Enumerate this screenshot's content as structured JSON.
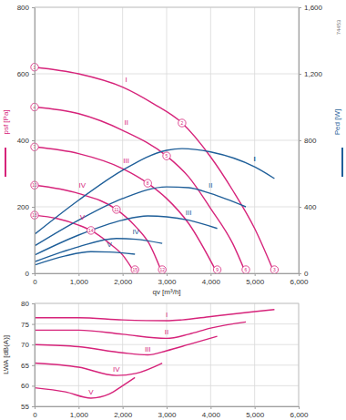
{
  "chart_data": [
    {
      "type": "line",
      "x_label": "qv [m³/h]",
      "y_label": "psf [Pa]",
      "y2_label": "Ped [W]",
      "annotations": [
        "74453"
      ],
      "grid": true,
      "xlim": [
        0,
        6000
      ],
      "xticks": [
        0,
        {
          "value": 1000,
          "label": "1,000"
        },
        {
          "value": 2000,
          "label": "2,000"
        },
        {
          "value": 3000,
          "label": "3,000"
        },
        {
          "value": 4000,
          "label": "4,000"
        },
        {
          "value": 5000,
          "label": "5,000"
        },
        {
          "value": 6000,
          "label": "6,000"
        }
      ],
      "ylim": [
        0,
        800
      ],
      "yticks": [
        0,
        200,
        400,
        600,
        800
      ],
      "y2lim": [
        0,
        1600
      ],
      "y2ticks": [
        0,
        400,
        800,
        {
          "value": 1200,
          "label": "1,200"
        },
        {
          "value": 1600,
          "label": "1,600"
        }
      ],
      "series": [
        {
          "name": "I",
          "color": "#d6237a",
          "x": [
            0,
            1000,
            2000,
            2700,
            3350,
            4000,
            4500,
            5000,
            5450
          ],
          "values": [
            620,
            600,
            560,
            510,
            452,
            350,
            250,
            135,
            0
          ]
        },
        {
          "name": "II",
          "color": "#d6237a",
          "x": [
            0,
            1000,
            2000,
            3000,
            3500,
            4000,
            4500,
            4800
          ],
          "values": [
            500,
            480,
            430,
            353,
            290,
            195,
            90,
            0
          ]
        },
        {
          "name": "III",
          "color": "#d6237a",
          "x": [
            0,
            1000,
            2000,
            2570,
            3000,
            3500,
            4150
          ],
          "values": [
            380,
            360,
            315,
            271,
            225,
            150,
            0
          ]
        },
        {
          "name": "IV",
          "color": "#d6237a",
          "x": [
            0,
            1000,
            1860,
            2300,
            2600,
            2900
          ],
          "values": [
            265,
            240,
            192,
            140,
            90,
            0
          ]
        },
        {
          "name": "V",
          "color": "#d6237a",
          "x": [
            0,
            500,
            1000,
            1280,
            1700,
            2000,
            2280
          ],
          "values": [
            175,
            165,
            145,
            129,
            90,
            55,
            0
          ]
        },
        {
          "name": "I",
          "color": "#1f5f99",
          "axis": "y2",
          "x": [
            0,
            1000,
            2000,
            3000,
            3350,
            4000,
            5000,
            5450
          ],
          "values": [
            235,
            440,
            620,
            740,
            750,
            730,
            640,
            570
          ]
        },
        {
          "name": "II",
          "color": "#1f5f99",
          "axis": "y2",
          "x": [
            0,
            1000,
            2000,
            3000,
            3500,
            4000,
            4800
          ],
          "values": [
            165,
            320,
            450,
            520,
            515,
            480,
            400
          ]
        },
        {
          "name": "III",
          "color": "#1f5f99",
          "axis": "y2",
          "x": [
            0,
            1000,
            2000,
            2570,
            3000,
            3500,
            4150
          ],
          "values": [
            110,
            230,
            320,
            345,
            340,
            320,
            270
          ]
        },
        {
          "name": "IV",
          "color": "#1f5f99",
          "axis": "y2",
          "x": [
            0,
            1000,
            1860,
            2300,
            2900
          ],
          "values": [
            70,
            160,
            210,
            205,
            180
          ]
        },
        {
          "name": "V",
          "color": "#1f5f99",
          "axis": "y2",
          "x": [
            0,
            700,
            1280,
            1700,
            2280
          ],
          "values": [
            50,
            105,
            130,
            128,
            115
          ]
        }
      ],
      "points": [
        {
          "label": "1",
          "x": 0,
          "y": 620
        },
        {
          "label": "2",
          "x": 3350,
          "y": 452
        },
        {
          "label": "3",
          "x": 5450,
          "y": 0
        },
        {
          "label": "4",
          "x": 0,
          "y": 500
        },
        {
          "label": "5",
          "x": 3000,
          "y": 353
        },
        {
          "label": "6",
          "x": 4800,
          "y": 0
        },
        {
          "label": "7",
          "x": 0,
          "y": 380
        },
        {
          "label": "8",
          "x": 2570,
          "y": 271
        },
        {
          "label": "9",
          "x": 4150,
          "y": 0
        },
        {
          "label": "10",
          "x": 0,
          "y": 265
        },
        {
          "label": "11",
          "x": 1860,
          "y": 192
        },
        {
          "label": "12",
          "x": 2900,
          "y": 0
        },
        {
          "label": "13",
          "x": 0,
          "y": 175
        },
        {
          "label": "14",
          "x": 1280,
          "y": 129
        },
        {
          "label": "15",
          "x": 2280,
          "y": 0
        }
      ]
    },
    {
      "type": "line",
      "y_label": "LWA [dB(A)]",
      "grid": true,
      "xlim": [
        0,
        6000
      ],
      "xticks": [
        0,
        {
          "value": 1000,
          "label": "1,000"
        },
        {
          "value": 2000,
          "label": "2,000"
        },
        {
          "value": 3000,
          "label": "3,000"
        },
        {
          "value": 4000,
          "label": "4,000"
        },
        {
          "value": 5000,
          "label": "5,000"
        },
        {
          "value": 6000,
          "label": "6,000"
        }
      ],
      "ylim": [
        55,
        80
      ],
      "yticks": [
        55,
        60,
        65,
        70,
        75,
        80
      ],
      "series": [
        {
          "name": "I",
          "color": "#d6237a",
          "x": [
            0,
            1000,
            2000,
            3000,
            3350,
            4000,
            5000,
            5450
          ],
          "values": [
            76.5,
            76.5,
            76,
            75.8,
            76,
            76.8,
            78,
            78.5
          ]
        },
        {
          "name": "II",
          "color": "#d6237a",
          "x": [
            0,
            1000,
            2000,
            3000,
            3500,
            4000,
            4800
          ],
          "values": [
            73.5,
            73.5,
            72.5,
            71.5,
            72.5,
            74,
            75.5
          ]
        },
        {
          "name": "III",
          "color": "#d6237a",
          "x": [
            0,
            1000,
            2000,
            2570,
            3000,
            3500,
            4150
          ],
          "values": [
            70,
            69.5,
            68,
            67.5,
            68.5,
            70,
            72
          ]
        },
        {
          "name": "IV",
          "color": "#d6237a",
          "x": [
            0,
            1000,
            1860,
            2300,
            2900
          ],
          "values": [
            65.5,
            64.5,
            62.5,
            63,
            65.5
          ]
        },
        {
          "name": "V",
          "color": "#d6237a",
          "x": [
            0,
            700,
            1280,
            1700,
            2000,
            2280
          ],
          "values": [
            59.5,
            58.5,
            57,
            58,
            60,
            62
          ]
        }
      ]
    }
  ]
}
